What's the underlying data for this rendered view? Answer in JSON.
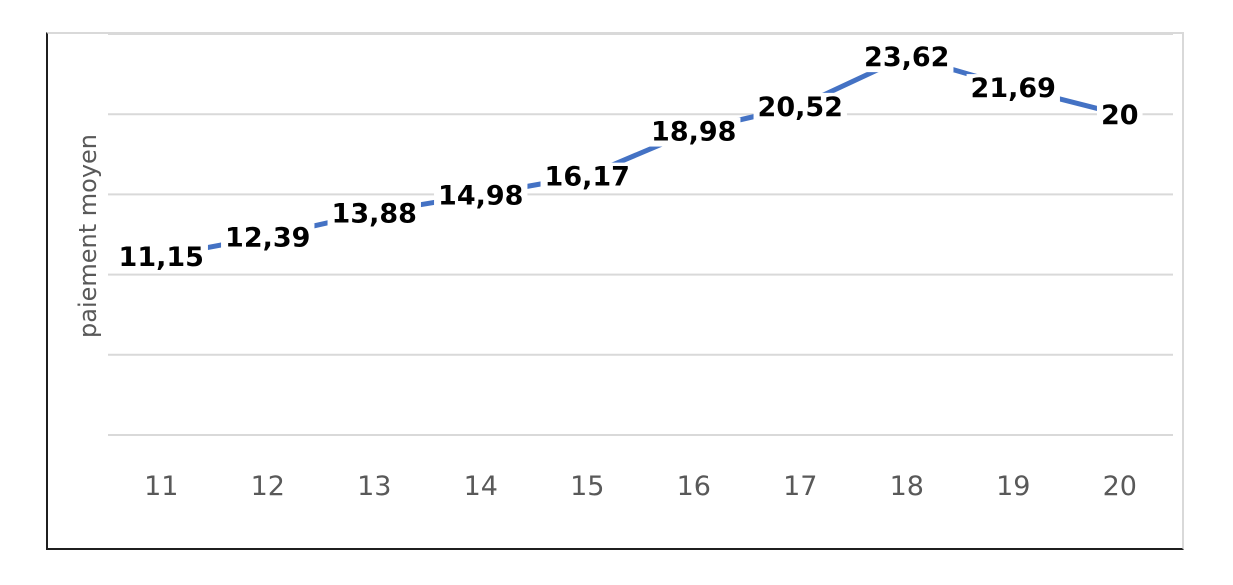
{
  "chart_data": {
    "type": "line",
    "title": "",
    "xlabel": "",
    "ylabel": "paiement moyen",
    "categories": [
      "11",
      "12",
      "13",
      "14",
      "15",
      "16",
      "17",
      "18",
      "19",
      "20"
    ],
    "series": [
      {
        "values": [
          11.15,
          12.39,
          13.88,
          14.98,
          16.17,
          18.98,
          20.52,
          23.62,
          21.69,
          20
        ],
        "labels": [
          "11,15",
          "12,39",
          "13,88",
          "14,98",
          "16,17",
          "18,98",
          "20,52",
          "23,62",
          "21,69",
          "20"
        ],
        "color": "#4472c4"
      }
    ],
    "ylim": [
      0,
      25
    ],
    "grid": true,
    "legend": "none"
  }
}
